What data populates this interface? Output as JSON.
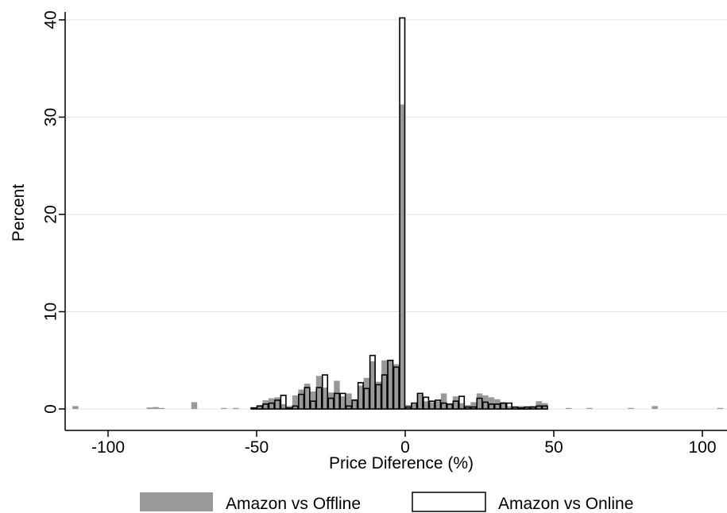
{
  "chart_data": {
    "type": "bar",
    "xlabel": "Price Diference (%)",
    "ylabel": "Percent",
    "xlim": [
      -112,
      107
    ],
    "ylim": [
      0,
      40.5
    ],
    "xticks": [
      -100,
      -50,
      0,
      50,
      100
    ],
    "xtick_labels": [
      "-100",
      "-50",
      "0",
      "50",
      "100"
    ],
    "yticks": [
      0,
      10,
      20,
      30,
      40
    ],
    "ytick_labels": [
      "0",
      "10",
      "20",
      "30",
      "40"
    ],
    "grid": "horizontal",
    "bin_width": 2,
    "legend": {
      "position": "bottom",
      "entries": [
        "Amazon vs Offline",
        "Amazon vs Online"
      ]
    },
    "colors": {
      "offline_fill": "#999999",
      "online_stroke": "#000000",
      "grid": "#e1e1e1"
    },
    "series": [
      {
        "name": "Amazon vs Offline",
        "style": "filled",
        "bins": [
          [
            -111,
            0.3
          ],
          [
            -86,
            0.15
          ],
          [
            -84,
            0.2
          ],
          [
            -82,
            0.1
          ],
          [
            -71,
            0.7
          ],
          [
            -61,
            0.1
          ],
          [
            -57,
            0.1
          ],
          [
            -51,
            0.2
          ],
          [
            -49,
            0.4
          ],
          [
            -47,
            0.9
          ],
          [
            -45,
            1.1
          ],
          [
            -43,
            1.2
          ],
          [
            -41,
            0.5
          ],
          [
            -39,
            0.3
          ],
          [
            -37,
            1.4
          ],
          [
            -35,
            2.0
          ],
          [
            -33,
            2.6
          ],
          [
            -31,
            1.8
          ],
          [
            -29,
            3.4
          ],
          [
            -27,
            2.2
          ],
          [
            -25,
            1.7
          ],
          [
            -23,
            2.9
          ],
          [
            -21,
            1.3
          ],
          [
            -19,
            1.6
          ],
          [
            -17,
            1.0
          ],
          [
            -15,
            2.4
          ],
          [
            -13,
            3.2
          ],
          [
            -11,
            4.9
          ],
          [
            -9,
            2.8
          ],
          [
            -7,
            5.0
          ],
          [
            -5,
            5.0
          ],
          [
            -3,
            4.6
          ],
          [
            -1,
            31.3
          ],
          [
            1,
            0.4
          ],
          [
            3,
            0.5
          ],
          [
            5,
            1.5
          ],
          [
            7,
            0.8
          ],
          [
            9,
            0.7
          ],
          [
            11,
            0.8
          ],
          [
            13,
            1.6
          ],
          [
            15,
            0.5
          ],
          [
            17,
            1.3
          ],
          [
            19,
            0.6
          ],
          [
            21,
            0.4
          ],
          [
            23,
            0.7
          ],
          [
            25,
            1.6
          ],
          [
            27,
            1.4
          ],
          [
            29,
            1.2
          ],
          [
            31,
            1.0
          ],
          [
            33,
            0.7
          ],
          [
            35,
            0.3
          ],
          [
            37,
            0.2
          ],
          [
            39,
            0.3
          ],
          [
            41,
            0.2
          ],
          [
            43,
            0.3
          ],
          [
            45,
            0.8
          ],
          [
            47,
            0.6
          ],
          [
            55,
            0.1
          ],
          [
            62,
            0.1
          ],
          [
            76,
            0.1
          ],
          [
            84,
            0.3
          ],
          [
            106,
            0.1
          ]
        ]
      },
      {
        "name": "Amazon vs Online",
        "style": "outline",
        "bins": [
          [
            -51,
            0.1
          ],
          [
            -49,
            0.3
          ],
          [
            -47,
            0.5
          ],
          [
            -45,
            0.6
          ],
          [
            -43,
            0.9
          ],
          [
            -41,
            1.4
          ],
          [
            -39,
            0.1
          ],
          [
            -37,
            0.3
          ],
          [
            -35,
            1.5
          ],
          [
            -33,
            2.2
          ],
          [
            -31,
            0.8
          ],
          [
            -29,
            2.2
          ],
          [
            -27,
            3.5
          ],
          [
            -25,
            1.1
          ],
          [
            -23,
            1.6
          ],
          [
            -21,
            1.6
          ],
          [
            -19,
            0.3
          ],
          [
            -17,
            0.9
          ],
          [
            -15,
            2.7
          ],
          [
            -13,
            2.1
          ],
          [
            -11,
            5.5
          ],
          [
            -9,
            2.5
          ],
          [
            -7,
            3.5
          ],
          [
            -5,
            5.0
          ],
          [
            -3,
            4.3
          ],
          [
            -1,
            40.2
          ],
          [
            1,
            0.2
          ],
          [
            3,
            0.6
          ],
          [
            5,
            1.6
          ],
          [
            7,
            1.2
          ],
          [
            9,
            0.8
          ],
          [
            11,
            0.9
          ],
          [
            13,
            0.6
          ],
          [
            15,
            0.5
          ],
          [
            17,
            0.8
          ],
          [
            19,
            1.3
          ],
          [
            21,
            0.2
          ],
          [
            23,
            0.2
          ],
          [
            25,
            1.1
          ],
          [
            27,
            0.7
          ],
          [
            29,
            0.5
          ],
          [
            31,
            0.5
          ],
          [
            33,
            0.6
          ],
          [
            35,
            0.6
          ],
          [
            37,
            0.2
          ],
          [
            39,
            0.1
          ],
          [
            41,
            0.2
          ],
          [
            43,
            0.2
          ],
          [
            45,
            0.3
          ],
          [
            47,
            0.3
          ]
        ]
      }
    ]
  }
}
